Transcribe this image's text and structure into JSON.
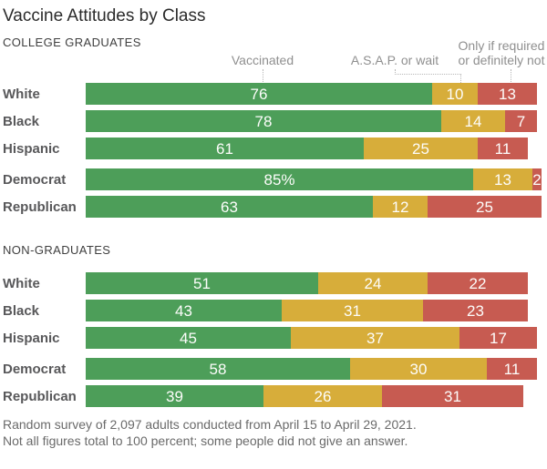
{
  "title": "Vaccine Attitudes by Class",
  "annotations": {
    "vaccinated": "Vaccinated",
    "asap": "A.S.A.P. or wait",
    "only_line1": "Only if required",
    "only_line2": "or definitely not"
  },
  "footnote": {
    "line1": "Random survey of 2,097 adults conducted from April 15 to April 29, 2021.",
    "line2": "Not all figures total to 100 percent; some people did not give an answer."
  },
  "chart_data": {
    "type": "bar",
    "orientation": "horizontal",
    "stacked": true,
    "title": "Vaccine Attitudes by Class",
    "xlim": [
      0,
      100
    ],
    "legend_position": "top",
    "legend": [
      "Vaccinated",
      "A.S.A.P. or wait",
      "Only if required or definitely not"
    ],
    "colors": [
      "#4d9e59",
      "#d7ad3a",
      "#c75b51"
    ],
    "series_keys": [
      "vaccinated",
      "asap-or-wait",
      "only-if-required"
    ],
    "sections": [
      {
        "heading": "COLLEGE GRADUATES",
        "groups": [
          {
            "rows": [
              {
                "label": "White",
                "values": [
                  76,
                  10,
                  13
                ],
                "value_labels": [
                  "76",
                  "10",
                  "13"
                ]
              },
              {
                "label": "Black",
                "values": [
                  78,
                  14,
                  7
                ],
                "value_labels": [
                  "78",
                  "14",
                  "7"
                ]
              },
              {
                "label": "Hispanic",
                "values": [
                  61,
                  25,
                  11
                ],
                "value_labels": [
                  "61",
                  "25",
                  "11"
                ]
              }
            ]
          },
          {
            "rows": [
              {
                "label": "Democrat",
                "values": [
                  85,
                  13,
                  2
                ],
                "value_labels": [
                  "85%",
                  "13",
                  "2"
                ]
              },
              {
                "label": "Republican",
                "values": [
                  63,
                  12,
                  25
                ],
                "value_labels": [
                  "63",
                  "12",
                  "25"
                ]
              }
            ]
          }
        ]
      },
      {
        "heading": "NON-GRADUATES",
        "groups": [
          {
            "rows": [
              {
                "label": "White",
                "values": [
                  51,
                  24,
                  22
                ],
                "value_labels": [
                  "51",
                  "24",
                  "22"
                ]
              },
              {
                "label": "Black",
                "values": [
                  43,
                  31,
                  23
                ],
                "value_labels": [
                  "43",
                  "31",
                  "23"
                ]
              },
              {
                "label": "Hispanic",
                "values": [
                  45,
                  37,
                  17
                ],
                "value_labels": [
                  "45",
                  "37",
                  "17"
                ]
              }
            ]
          },
          {
            "rows": [
              {
                "label": "Democrat",
                "values": [
                  58,
                  30,
                  11
                ],
                "value_labels": [
                  "58",
                  "30",
                  "11"
                ]
              },
              {
                "label": "Republican",
                "values": [
                  39,
                  26,
                  31
                ],
                "value_labels": [
                  "39",
                  "26",
                  "31"
                ]
              }
            ]
          }
        ]
      }
    ]
  }
}
